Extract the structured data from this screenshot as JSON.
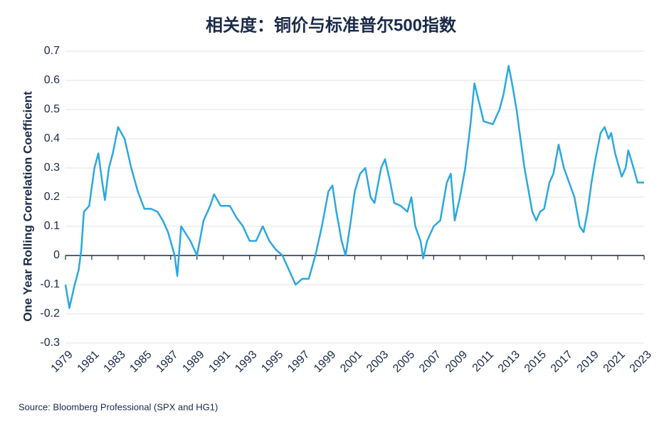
{
  "chart_data": {
    "type": "line",
    "title": "相关度：铜价与标准普尔500指数",
    "y_label": "One Year Rolling Correlation Coefficient",
    "source": "Source: Bloomberg Professional (SPX and HG1)",
    "color": "#2aa8e0",
    "x": [
      1979,
      1979.3,
      1979.7,
      1980,
      1980.2,
      1980.4,
      1980.8,
      1981.2,
      1981.5,
      1981.8,
      1982.0,
      1982.3,
      1982.6,
      1983.0,
      1983.5,
      1984.0,
      1984.5,
      1985.0,
      1985.5,
      1986.0,
      1986.4,
      1986.8,
      1987.3,
      1987.5,
      1987.8,
      1988.5,
      1989.0,
      1989.5,
      1990.0,
      1990.3,
      1990.8,
      1991.5,
      1992.0,
      1992.5,
      1993.0,
      1993.5,
      1994.0,
      1994.5,
      1995.0,
      1995.5,
      1996.0,
      1996.5,
      1997.0,
      1997.5,
      1998.0,
      1998.5,
      1999.0,
      1999.3,
      1999.6,
      2000.0,
      2000.3,
      2000.7,
      2001.0,
      2001.4,
      2001.8,
      2002.2,
      2002.5,
      2003.0,
      2003.3,
      2003.7,
      2004.0,
      2004.5,
      2005.0,
      2005.3,
      2005.6,
      2006.0,
      2006.2,
      2006.5,
      2007.0,
      2007.5,
      2008.0,
      2008.3,
      2008.6,
      2009.0,
      2009.4,
      2009.8,
      2010.1,
      2010.8,
      2011.5,
      2012.0,
      2012.3,
      2012.7,
      2013.0,
      2013.3,
      2013.6,
      2013.9,
      2014.1,
      2014.5,
      2014.8,
      2015.1,
      2015.4,
      2015.8,
      2016.1,
      2016.5,
      2016.9,
      2017.3,
      2017.7,
      2018.1,
      2018.4,
      2018.7,
      2019.0,
      2019.3,
      2019.7,
      2020.0,
      2020.3,
      2020.5,
      2020.8,
      2021.3,
      2021.6,
      2021.8,
      2022.2,
      2022.5,
      2023.0
    ],
    "values": [
      -0.1,
      -0.18,
      -0.1,
      -0.05,
      0.02,
      0.15,
      0.17,
      0.3,
      0.35,
      0.25,
      0.19,
      0.3,
      0.35,
      0.44,
      0.4,
      0.3,
      0.22,
      0.16,
      0.16,
      0.15,
      0.12,
      0.08,
      0.0,
      -0.07,
      0.1,
      0.05,
      0.0,
      0.12,
      0.17,
      0.21,
      0.17,
      0.17,
      0.13,
      0.1,
      0.05,
      0.05,
      0.1,
      0.05,
      0.02,
      0.0,
      -0.05,
      -0.1,
      -0.08,
      -0.08,
      0.0,
      0.1,
      0.22,
      0.24,
      0.15,
      0.05,
      0.0,
      0.12,
      0.22,
      0.28,
      0.3,
      0.2,
      0.18,
      0.3,
      0.33,
      0.25,
      0.18,
      0.17,
      0.15,
      0.2,
      0.1,
      0.05,
      -0.01,
      0.05,
      0.1,
      0.12,
      0.25,
      0.28,
      0.12,
      0.2,
      0.3,
      0.45,
      0.59,
      0.46,
      0.45,
      0.5,
      0.55,
      0.65,
      0.58,
      0.5,
      0.4,
      0.3,
      0.25,
      0.15,
      0.12,
      0.15,
      0.16,
      0.25,
      0.28,
      0.38,
      0.3,
      0.25,
      0.2,
      0.1,
      0.08,
      0.15,
      0.25,
      0.33,
      0.42,
      0.44,
      0.4,
      0.42,
      0.35,
      0.27,
      0.3,
      0.36,
      0.3,
      0.25,
      0.25
    ],
    "xlim": [
      1979,
      2023
    ],
    "xticks": [
      1979,
      1981,
      1983,
      1985,
      1987,
      1989,
      1991,
      1993,
      1995,
      1997,
      1999,
      2001,
      2003,
      2005,
      2007,
      2009,
      2011,
      2013,
      2015,
      2017,
      2019,
      2021,
      2023
    ],
    "ylim": [
      -0.3,
      0.7
    ],
    "yticks": [
      -0.3,
      -0.2,
      -0.1,
      0,
      0.1,
      0.2,
      0.3,
      0.4,
      0.5,
      0.6,
      0.7
    ],
    "grid": true
  }
}
